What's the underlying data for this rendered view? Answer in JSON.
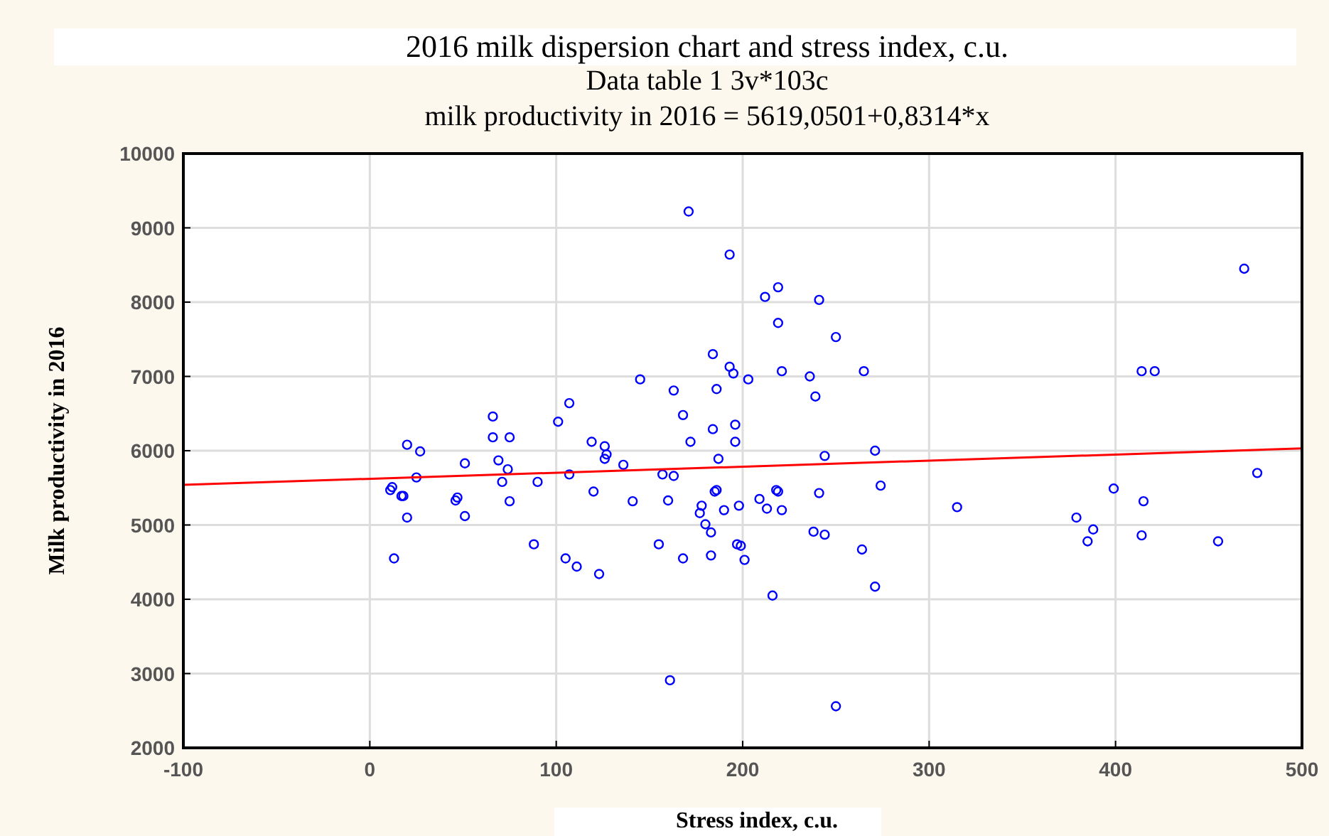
{
  "chart_data": {
    "type": "scatter",
    "title": "2016 milk dispersion chart and stress index, c.u.",
    "subtitle": "Data table 1 3v*103c",
    "annotations": [
      "milk productivity in 2016 = 5619,0501+0,8314*x"
    ],
    "xlabel": "Stress index, c.u.",
    "ylabel": "Milk productivity  in 2016",
    "xlim": [
      -100,
      500
    ],
    "xticks": [
      -100,
      0,
      100,
      200,
      300,
      400,
      500
    ],
    "ylim": [
      2000,
      10000
    ],
    "yticks": [
      2000,
      3000,
      4000,
      5000,
      6000,
      7000,
      8000,
      9000,
      10000
    ],
    "grid": true,
    "series": [
      {
        "marker": "circle",
        "color": "#0000ff",
        "x": [
          13,
          11,
          17,
          20,
          20,
          27,
          25,
          12,
          18,
          51,
          47,
          46,
          51,
          66,
          66,
          75,
          69,
          74,
          71,
          75,
          88,
          90,
          101,
          107,
          107,
          105,
          111,
          123,
          119,
          126,
          126,
          127,
          136,
          120,
          141,
          145,
          171,
          193,
          212,
          219,
          241,
          219,
          250,
          184,
          193,
          195,
          203,
          221,
          236,
          265,
          163,
          186,
          239,
          168,
          184,
          196,
          172,
          196,
          187,
          244,
          271,
          157,
          163,
          160,
          185,
          186,
          218,
          219,
          241,
          274,
          178,
          177,
          190,
          198,
          209,
          213,
          221,
          180,
          183,
          155,
          197,
          199,
          238,
          244,
          168,
          183,
          201,
          264,
          271,
          216,
          161,
          250,
          315,
          414,
          421,
          476,
          399,
          415,
          379,
          388,
          385,
          414,
          455,
          469
        ],
        "values": [
          4550,
          5470,
          5390,
          5100,
          6080,
          5990,
          5640,
          5510,
          5390,
          5830,
          5370,
          5330,
          5120,
          6460,
          6180,
          6180,
          5870,
          5750,
          5580,
          5320,
          4740,
          5580,
          6390,
          6640,
          5680,
          4550,
          4440,
          4340,
          6120,
          6060,
          5890,
          5950,
          5810,
          5450,
          5320,
          6960,
          9220,
          8640,
          8070,
          8200,
          8030,
          7720,
          7530,
          7300,
          7130,
          7040,
          6960,
          7070,
          7000,
          7070,
          6810,
          6830,
          6730,
          6480,
          6290,
          6350,
          6120,
          6120,
          5890,
          5930,
          6000,
          5680,
          5660,
          5330,
          5450,
          5470,
          5470,
          5450,
          5430,
          5530,
          5260,
          5160,
          5200,
          5260,
          5350,
          5220,
          5200,
          5010,
          4900,
          4740,
          4740,
          4720,
          4910,
          4870,
          4550,
          4590,
          4530,
          4670,
          4170,
          4050,
          2910,
          2560,
          5240,
          7070,
          7070,
          5700,
          5490,
          5320,
          5100,
          4940,
          4780,
          4860,
          4780,
          8450
        ]
      },
      {
        "type": "line",
        "color": "#ff0000",
        "x": [
          -100,
          500
        ],
        "values": [
          5540,
          6030
        ]
      }
    ]
  }
}
